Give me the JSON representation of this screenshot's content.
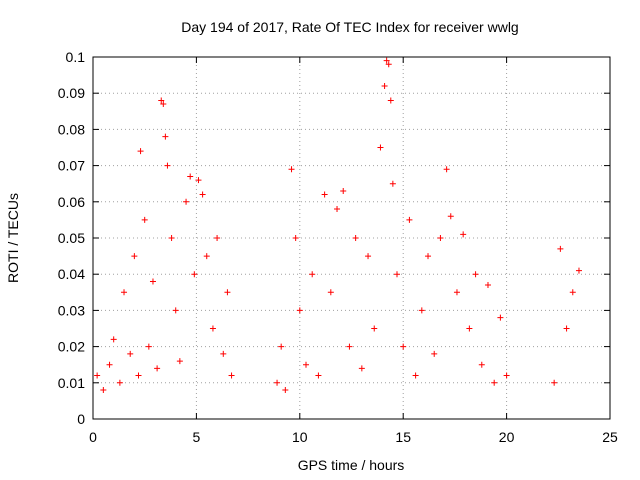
{
  "chart_data": {
    "type": "scatter",
    "title": "Day 194 of 2017, Rate Of TEC Index for receiver wwlg",
    "xlabel": "GPS time / hours",
    "ylabel": "ROTI / TECUs",
    "xlim": [
      0,
      25
    ],
    "ylim": [
      0,
      0.1
    ],
    "xticks": [
      0,
      5,
      10,
      15,
      20,
      25
    ],
    "xtick_labels": [
      "0",
      "5",
      "10",
      "15",
      "20",
      "25"
    ],
    "yticks": [
      0,
      0.01,
      0.02,
      0.03,
      0.04,
      0.05,
      0.06,
      0.07,
      0.08,
      0.09,
      0.1
    ],
    "ytick_labels": [
      "0",
      "0.01",
      "0.02",
      "0.03",
      "0.04",
      "0.05",
      "0.06",
      "0.07",
      "0.08",
      "0.09",
      "0.1"
    ],
    "grid": true,
    "legend": "none",
    "marker": "+",
    "marker_color": "#ff0000",
    "series": [
      {
        "name": "ROTI",
        "points": [
          [
            0.2,
            0.012
          ],
          [
            0.5,
            0.008
          ],
          [
            0.8,
            0.015
          ],
          [
            1.0,
            0.022
          ],
          [
            1.3,
            0.01
          ],
          [
            1.5,
            0.035
          ],
          [
            1.8,
            0.018
          ],
          [
            2.0,
            0.045
          ],
          [
            2.2,
            0.012
          ],
          [
            2.3,
            0.074
          ],
          [
            2.5,
            0.055
          ],
          [
            2.7,
            0.02
          ],
          [
            2.9,
            0.038
          ],
          [
            3.1,
            0.014
          ],
          [
            3.3,
            0.088
          ],
          [
            3.4,
            0.087
          ],
          [
            3.5,
            0.078
          ],
          [
            3.6,
            0.07
          ],
          [
            3.8,
            0.05
          ],
          [
            4.0,
            0.03
          ],
          [
            4.2,
            0.016
          ],
          [
            4.5,
            0.06
          ],
          [
            4.7,
            0.067
          ],
          [
            4.9,
            0.04
          ],
          [
            5.1,
            0.066
          ],
          [
            5.3,
            0.062
          ],
          [
            5.5,
            0.045
          ],
          [
            5.8,
            0.025
          ],
          [
            6.0,
            0.05
          ],
          [
            6.3,
            0.018
          ],
          [
            6.5,
            0.035
          ],
          [
            6.7,
            0.012
          ],
          [
            8.9,
            0.01
          ],
          [
            9.1,
            0.02
          ],
          [
            9.3,
            0.008
          ],
          [
            9.6,
            0.069
          ],
          [
            9.8,
            0.05
          ],
          [
            10.0,
            0.03
          ],
          [
            10.3,
            0.015
          ],
          [
            10.6,
            0.04
          ],
          [
            10.9,
            0.012
          ],
          [
            11.2,
            0.062
          ],
          [
            11.5,
            0.035
          ],
          [
            11.8,
            0.058
          ],
          [
            12.1,
            0.063
          ],
          [
            12.4,
            0.02
          ],
          [
            12.7,
            0.05
          ],
          [
            13.0,
            0.014
          ],
          [
            13.3,
            0.045
          ],
          [
            13.6,
            0.025
          ],
          [
            13.9,
            0.075
          ],
          [
            14.1,
            0.092
          ],
          [
            14.2,
            0.099
          ],
          [
            14.3,
            0.098
          ],
          [
            14.4,
            0.088
          ],
          [
            14.5,
            0.065
          ],
          [
            14.7,
            0.04
          ],
          [
            15.0,
            0.02
          ],
          [
            15.3,
            0.055
          ],
          [
            15.6,
            0.012
          ],
          [
            15.9,
            0.03
          ],
          [
            16.2,
            0.045
          ],
          [
            16.5,
            0.018
          ],
          [
            16.8,
            0.05
          ],
          [
            17.1,
            0.069
          ],
          [
            17.3,
            0.056
          ],
          [
            17.6,
            0.035
          ],
          [
            17.9,
            0.051
          ],
          [
            18.2,
            0.025
          ],
          [
            18.5,
            0.04
          ],
          [
            18.8,
            0.015
          ],
          [
            19.1,
            0.037
          ],
          [
            19.4,
            0.01
          ],
          [
            19.7,
            0.028
          ],
          [
            20.0,
            0.012
          ],
          [
            22.3,
            0.01
          ],
          [
            22.6,
            0.047
          ],
          [
            22.9,
            0.025
          ],
          [
            23.2,
            0.035
          ],
          [
            23.5,
            0.041
          ]
        ]
      }
    ]
  }
}
